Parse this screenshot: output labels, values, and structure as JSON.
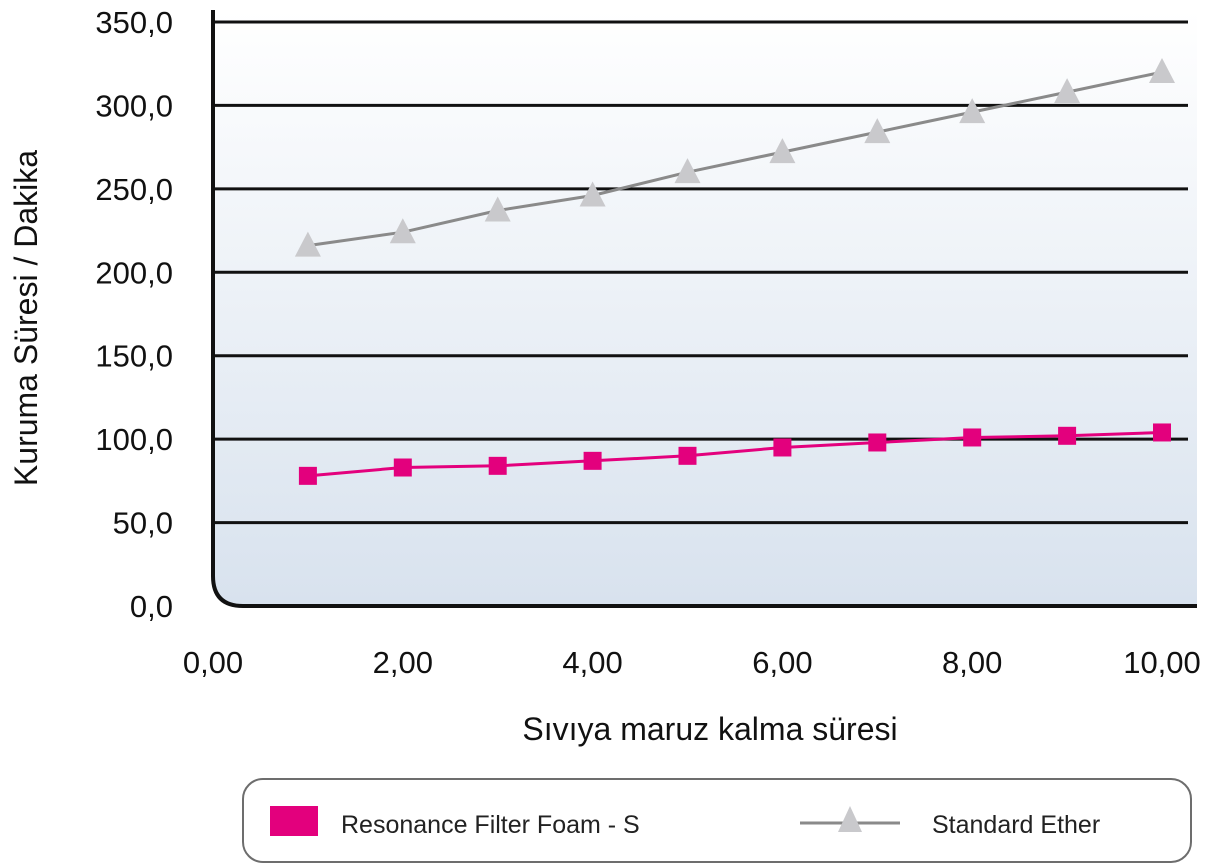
{
  "chart_data": {
    "type": "line",
    "title": "",
    "xlabel": "Sıvıya maruz kalma süresi",
    "ylabel": "Kuruma Süresi / Dakika",
    "xlim": [
      0,
      10
    ],
    "ylim": [
      0,
      350
    ],
    "x_ticks": [
      0,
      2,
      4,
      6,
      8,
      10
    ],
    "x_tick_labels": [
      "0,00",
      "2,00",
      "4,00",
      "6,00",
      "8,00",
      "10,00"
    ],
    "y_ticks": [
      0,
      50,
      100,
      150,
      200,
      250,
      300,
      350
    ],
    "y_tick_labels": [
      "0,0",
      "50,0",
      "100,0",
      "150,0",
      "200,0",
      "250,0",
      "300,0",
      "350,0"
    ],
    "grid": "horizontal",
    "legend_position": "bottom",
    "series": [
      {
        "name": "Resonance Filter Foam - S",
        "marker": "square",
        "color": "#e3007d",
        "x": [
          1,
          2,
          3,
          4,
          5,
          6,
          7,
          8,
          9,
          10
        ],
        "values": [
          78,
          83,
          84,
          87,
          90,
          95,
          98,
          101,
          102,
          104
        ]
      },
      {
        "name": "Standard Ether",
        "marker": "triangle",
        "color": "#8a8a8a",
        "marker_color": "#c9c9cc",
        "x": [
          1,
          2,
          3,
          4,
          5,
          6,
          7,
          8,
          9,
          10
        ],
        "values": [
          216,
          224,
          237,
          246,
          260,
          272,
          284,
          296,
          308,
          320
        ]
      }
    ]
  }
}
